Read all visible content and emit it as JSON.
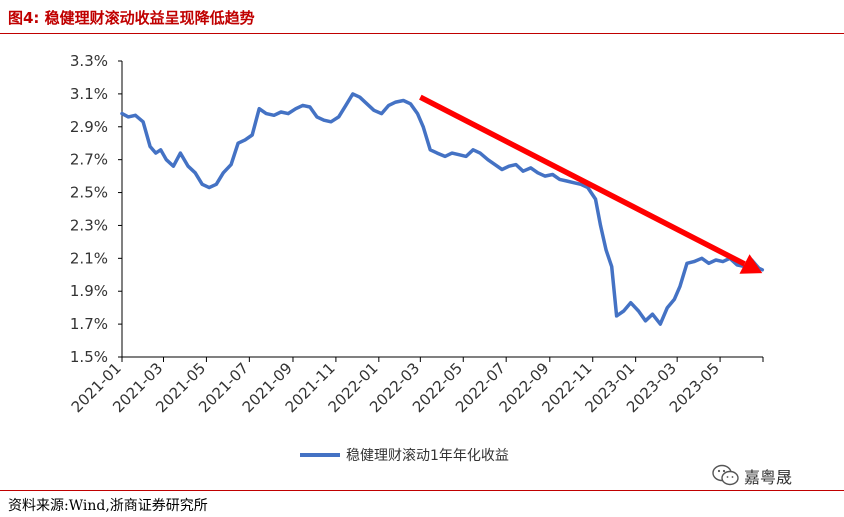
{
  "figure": {
    "title": "图4:  稳健理财滚动收益呈现降低趋势",
    "source": "资料来源:Wind,浙商证券研究所",
    "watermark": "嘉粤晟",
    "watermark_icon": "wechat-icon"
  },
  "colors": {
    "series": "#4472c4",
    "arrow": "#ff0000",
    "title": "#c00000",
    "rule": "#c00000",
    "axis": "#000000",
    "tick_text": "#333333"
  },
  "chart_data": {
    "type": "line",
    "title": "",
    "xlabel": "",
    "ylabel": "",
    "y_unit": "%",
    "ylim": [
      1.5,
      3.3
    ],
    "yticks": [
      1.5,
      1.7,
      1.9,
      2.1,
      2.3,
      2.5,
      2.7,
      2.9,
      3.1,
      3.3
    ],
    "ytick_labels": [
      "1.5%",
      "1.7%",
      "1.9%",
      "2.1%",
      "2.3%",
      "2.5%",
      "2.7%",
      "2.9%",
      "3.1%",
      "3.3%"
    ],
    "xlim": [
      "2021-01",
      "2023-07"
    ],
    "xticks": [
      "2021-01",
      "2021-03",
      "2021-05",
      "2021-07",
      "2021-09",
      "2021-11",
      "2022-01",
      "2022-03",
      "2022-05",
      "2022-07",
      "2022-09",
      "2022-11",
      "2023-01",
      "2023-03",
      "2023-05"
    ],
    "grid": false,
    "legend_position": "bottom",
    "series": [
      {
        "name": "稳健理财滚动1年年化收益",
        "x": [
          "2021-01-01",
          "2021-01-10",
          "2021-01-20",
          "2021-01-31",
          "2021-02-10",
          "2021-02-18",
          "2021-02-25",
          "2021-03-05",
          "2021-03-15",
          "2021-03-25",
          "2021-04-05",
          "2021-04-15",
          "2021-04-25",
          "2021-05-05",
          "2021-05-15",
          "2021-05-25",
          "2021-06-05",
          "2021-06-15",
          "2021-06-25",
          "2021-07-05",
          "2021-07-15",
          "2021-07-25",
          "2021-08-05",
          "2021-08-15",
          "2021-08-25",
          "2021-09-05",
          "2021-09-15",
          "2021-09-25",
          "2021-10-05",
          "2021-10-15",
          "2021-10-25",
          "2021-11-05",
          "2021-11-15",
          "2021-11-25",
          "2021-12-05",
          "2021-12-15",
          "2021-12-25",
          "2022-01-05",
          "2022-01-15",
          "2022-01-25",
          "2022-02-05",
          "2022-02-15",
          "2022-02-25",
          "2022-03-05",
          "2022-03-15",
          "2022-03-25",
          "2022-04-05",
          "2022-04-15",
          "2022-04-25",
          "2022-05-05",
          "2022-05-15",
          "2022-05-25",
          "2022-06-05",
          "2022-06-15",
          "2022-06-25",
          "2022-07-05",
          "2022-07-15",
          "2022-07-25",
          "2022-08-05",
          "2022-08-15",
          "2022-08-25",
          "2022-09-05",
          "2022-09-15",
          "2022-09-25",
          "2022-10-05",
          "2022-10-15",
          "2022-10-25",
          "2022-11-05",
          "2022-11-12",
          "2022-11-20",
          "2022-11-28",
          "2022-12-05",
          "2022-12-15",
          "2022-12-25",
          "2023-01-05",
          "2023-01-15",
          "2023-01-25",
          "2023-02-05",
          "2023-02-15",
          "2023-02-25",
          "2023-03-05",
          "2023-03-15",
          "2023-03-25",
          "2023-04-05",
          "2023-04-15",
          "2023-04-25",
          "2023-05-05",
          "2023-05-15",
          "2023-05-25",
          "2023-06-05",
          "2023-06-15",
          "2023-06-25",
          "2023-06-30"
        ],
        "values": [
          2.98,
          2.96,
          2.97,
          2.93,
          2.78,
          2.74,
          2.76,
          2.7,
          2.66,
          2.74,
          2.66,
          2.62,
          2.55,
          2.53,
          2.55,
          2.62,
          2.67,
          2.8,
          2.82,
          2.85,
          3.01,
          2.98,
          2.97,
          2.99,
          2.98,
          3.01,
          3.03,
          3.02,
          2.96,
          2.94,
          2.93,
          2.96,
          3.03,
          3.1,
          3.08,
          3.04,
          3.0,
          2.98,
          3.03,
          3.05,
          3.06,
          3.04,
          2.98,
          2.9,
          2.76,
          2.74,
          2.72,
          2.74,
          2.73,
          2.72,
          2.76,
          2.74,
          2.7,
          2.67,
          2.64,
          2.66,
          2.67,
          2.63,
          2.65,
          2.62,
          2.6,
          2.61,
          2.58,
          2.57,
          2.56,
          2.55,
          2.53,
          2.46,
          2.3,
          2.15,
          2.05,
          1.75,
          1.78,
          1.83,
          1.78,
          1.72,
          1.76,
          1.7,
          1.8,
          1.85,
          1.93,
          2.07,
          2.08,
          2.1,
          2.07,
          2.09,
          2.08,
          2.1,
          2.06,
          2.05,
          2.09,
          2.04,
          2.03
        ]
      }
    ],
    "annotations": [
      {
        "type": "arrow",
        "label": "downtrend",
        "from": [
          "2022-03-01",
          3.08
        ],
        "to": [
          "2023-06-30",
          2.01
        ]
      }
    ]
  }
}
